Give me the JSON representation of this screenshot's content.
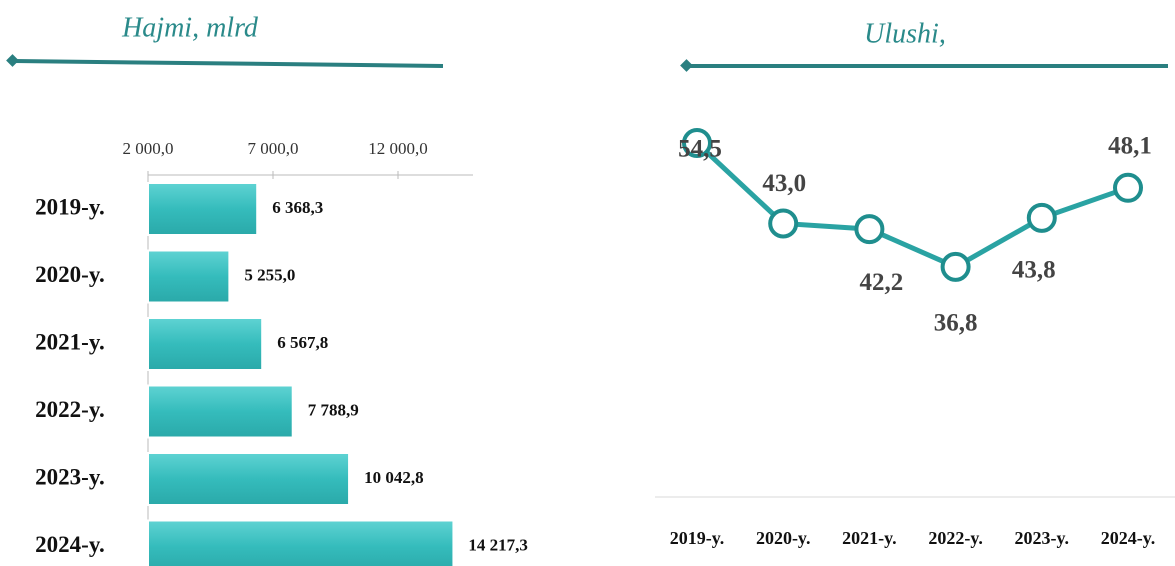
{
  "chart_data": [
    {
      "type": "hbar",
      "title": "Hajmi, mlrd",
      "categories": [
        "2019-y.",
        "2020-y.",
        "2021-y.",
        "2022-y.",
        "2023-y.",
        "2024-y."
      ],
      "values": [
        6368.3,
        5255.0,
        6567.8,
        7788.9,
        10042.8,
        14217.3
      ],
      "value_labels": [
        "6 368,3",
        "5 255,0",
        "6 567,8",
        "7 788,9",
        "10 042,8",
        "14 217,3"
      ],
      "color": "#3cc3c3",
      "xlim": [
        2000,
        15000
      ],
      "xticks": [
        {
          "value": 2000,
          "label": "2 000,0"
        },
        {
          "value": 7000,
          "label": "7 000,0"
        },
        {
          "value": 12000,
          "label": "12 000,0"
        }
      ]
    },
    {
      "type": "line",
      "title": "Ulushi,",
      "categories": [
        "2019-y.",
        "2020-y.",
        "2021-y.",
        "2022-y.",
        "2023-y.",
        "2024-y."
      ],
      "values": [
        54.5,
        43.0,
        42.2,
        36.8,
        43.8,
        48.1
      ],
      "value_labels": [
        "54,5",
        "43,0",
        "42,2",
        "36,8",
        "43,8",
        "48,1"
      ],
      "color": "#2aa3a3",
      "ylim": [
        5,
        60
      ]
    }
  ]
}
